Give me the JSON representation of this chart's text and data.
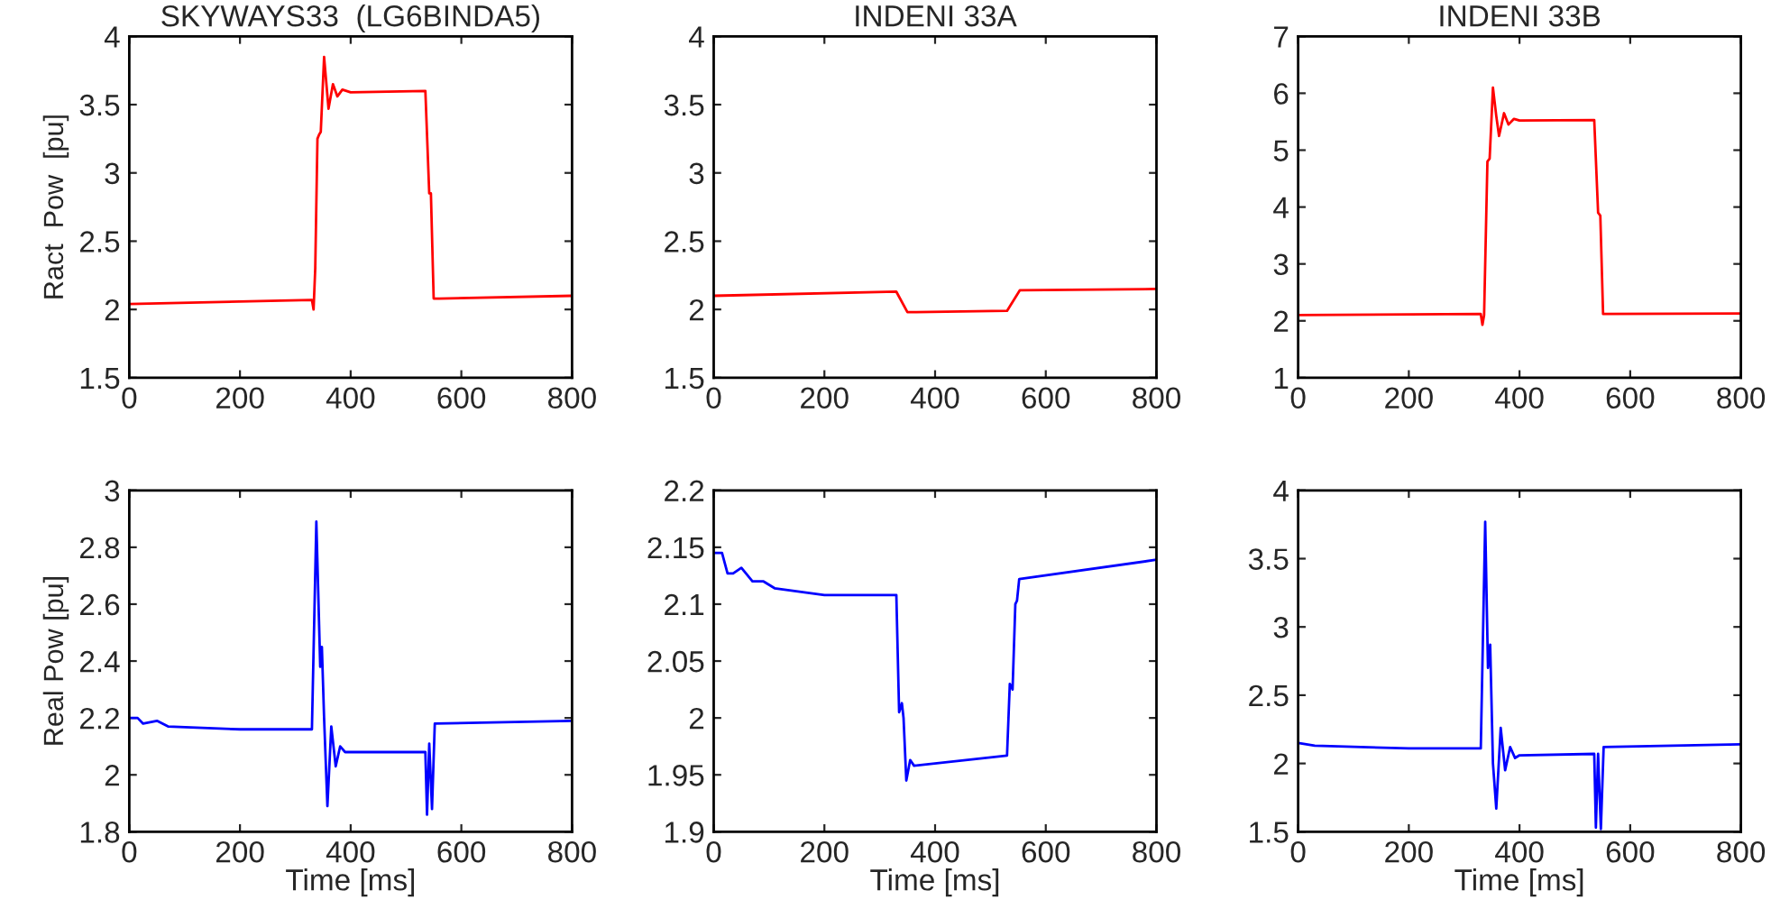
{
  "chart_data": [
    {
      "type": "line",
      "title": "SKYWAYS33  (LG6BINDA5)",
      "ylabel": "Ract  Pow  [pu]",
      "xlim": [
        0,
        800
      ],
      "xticks": [
        0,
        200,
        400,
        600,
        800
      ],
      "ylim": [
        1.5,
        4
      ],
      "yticks": [
        1.5,
        2,
        2.5,
        3,
        3.5,
        4
      ],
      "grid": false,
      "line_style": "solid",
      "series": [
        {
          "color": "#ff0000",
          "x": [
            0,
            330,
            333,
            336,
            340,
            343,
            346,
            352,
            360,
            368,
            376,
            385,
            400,
            535,
            542,
            545,
            550,
            560,
            800
          ],
          "values": [
            2.04,
            2.07,
            2.0,
            2.3,
            3.25,
            3.28,
            3.3,
            3.85,
            3.47,
            3.65,
            3.56,
            3.61,
            3.59,
            3.6,
            2.85,
            2.85,
            2.08,
            2.08,
            2.1
          ]
        }
      ]
    },
    {
      "type": "line",
      "title": "INDENI 33A",
      "xlim": [
        0,
        800
      ],
      "xticks": [
        0,
        200,
        400,
        600,
        800
      ],
      "ylim": [
        1.5,
        4
      ],
      "yticks": [
        1.5,
        2,
        2.5,
        3,
        3.5,
        4
      ],
      "grid": false,
      "line_style": "solid",
      "series": [
        {
          "color": "#ff0000",
          "x": [
            0,
            330,
            350,
            530,
            553,
            800
          ],
          "values": [
            2.1,
            2.13,
            1.98,
            1.99,
            2.14,
            2.15
          ]
        }
      ]
    },
    {
      "type": "line",
      "title": "INDENI 33B",
      "xlim": [
        0,
        800
      ],
      "xticks": [
        0,
        200,
        400,
        600,
        800
      ],
      "ylim": [
        1,
        7
      ],
      "yticks": [
        1,
        2,
        3,
        4,
        5,
        6,
        7
      ],
      "grid": false,
      "line_style": "solid",
      "series": [
        {
          "color": "#ff0000",
          "x": [
            0,
            330,
            333,
            336,
            342,
            346,
            352,
            358,
            363,
            372,
            380,
            390,
            400,
            535,
            542,
            546,
            551,
            800
          ],
          "values": [
            2.1,
            2.12,
            1.93,
            2.1,
            4.8,
            4.85,
            6.1,
            5.6,
            5.25,
            5.65,
            5.45,
            5.55,
            5.52,
            5.53,
            3.9,
            3.85,
            2.12,
            2.13
          ]
        }
      ]
    },
    {
      "type": "line",
      "xlabel": "Time [ms]",
      "ylabel": "Real Pow [pu]",
      "xlim": [
        0,
        800
      ],
      "xticks": [
        0,
        200,
        400,
        600,
        800
      ],
      "ylim": [
        1.8,
        3
      ],
      "yticks": [
        1.8,
        2,
        2.2,
        2.4,
        2.6,
        2.8,
        3
      ],
      "grid": false,
      "line_style": "solid",
      "series": [
        {
          "color": "#0000ff",
          "x": [
            0,
            15,
            25,
            50,
            70,
            200,
            330,
            338,
            345,
            348,
            352,
            358,
            365,
            373,
            381,
            390,
            535,
            538,
            542,
            547,
            552,
            800
          ],
          "values": [
            2.2,
            2.2,
            2.18,
            2.19,
            2.17,
            2.16,
            2.16,
            2.89,
            2.38,
            2.45,
            2.2,
            1.89,
            2.17,
            2.03,
            2.1,
            2.08,
            2.08,
            1.86,
            2.11,
            1.88,
            2.18,
            2.19
          ]
        }
      ]
    },
    {
      "type": "line",
      "xlabel": "Time [ms]",
      "xlim": [
        0,
        800
      ],
      "xticks": [
        0,
        200,
        400,
        600,
        800
      ],
      "ylim": [
        1.9,
        2.2
      ],
      "yticks": [
        1.9,
        1.95,
        2,
        2.05,
        2.1,
        2.15,
        2.2
      ],
      "grid": false,
      "line_style": "solid",
      "series": [
        {
          "color": "#0000ff",
          "x": [
            0,
            15,
            25,
            35,
            50,
            70,
            90,
            110,
            200,
            330,
            335,
            340,
            343,
            348,
            355,
            362,
            530,
            535,
            540,
            545,
            548,
            552,
            800
          ],
          "values": [
            2.145,
            2.145,
            2.127,
            2.127,
            2.132,
            2.12,
            2.12,
            2.114,
            2.108,
            2.108,
            2.005,
            2.013,
            2.0,
            1.945,
            1.963,
            1.958,
            1.967,
            2.03,
            2.025,
            2.1,
            2.103,
            2.122,
            2.139
          ]
        }
      ]
    },
    {
      "type": "line",
      "xlabel": "Time [ms]",
      "xlim": [
        0,
        800
      ],
      "xticks": [
        0,
        200,
        400,
        600,
        800
      ],
      "ylim": [
        1.5,
        4
      ],
      "yticks": [
        1.5,
        2,
        2.5,
        3,
        3.5,
        4
      ],
      "grid": false,
      "line_style": "solid",
      "series": [
        {
          "color": "#0000ff",
          "x": [
            0,
            30,
            200,
            330,
            338,
            343,
            347,
            352,
            358,
            366,
            374,
            383,
            392,
            400,
            535,
            538,
            542,
            547,
            552,
            800
          ],
          "values": [
            2.15,
            2.13,
            2.11,
            2.11,
            3.77,
            2.7,
            2.87,
            2.0,
            1.67,
            2.26,
            1.95,
            2.12,
            2.04,
            2.06,
            2.07,
            1.53,
            2.07,
            1.52,
            2.12,
            2.14
          ]
        }
      ]
    }
  ]
}
